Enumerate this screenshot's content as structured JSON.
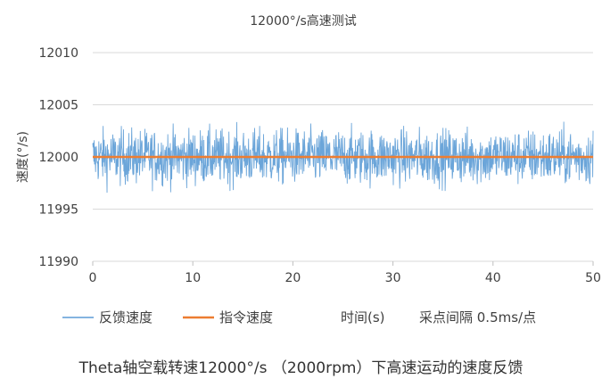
{
  "chart_data": {
    "type": "line",
    "title": "12000°/s高速测试",
    "ylabel": "速度(°/s)",
    "x_range": [
      0,
      50
    ],
    "x_ticks": [
      "0",
      "10",
      "20",
      "30",
      "40",
      "50"
    ],
    "y_range": [
      11990,
      12010
    ],
    "y_ticks": [
      "11990",
      "11995",
      "12000",
      "12005",
      "12010"
    ],
    "grid": "horizontal",
    "legend_position": "bottom",
    "series": [
      {
        "name": "反馈速度",
        "color": "#5b9bd5",
        "mean": 12000,
        "band": [
          11996.5,
          12004.3
        ]
      },
      {
        "name": "指令速度",
        "color": "#ed7d31",
        "x": [
          0,
          50
        ],
        "y": [
          12000,
          12000
        ]
      }
    ],
    "xlabel": "时间(s)",
    "annotation": "采点间隔 0.5ms/点"
  },
  "caption": "Theta轴空载转速12000°/s （2000rpm）下高速运动的速度反馈"
}
